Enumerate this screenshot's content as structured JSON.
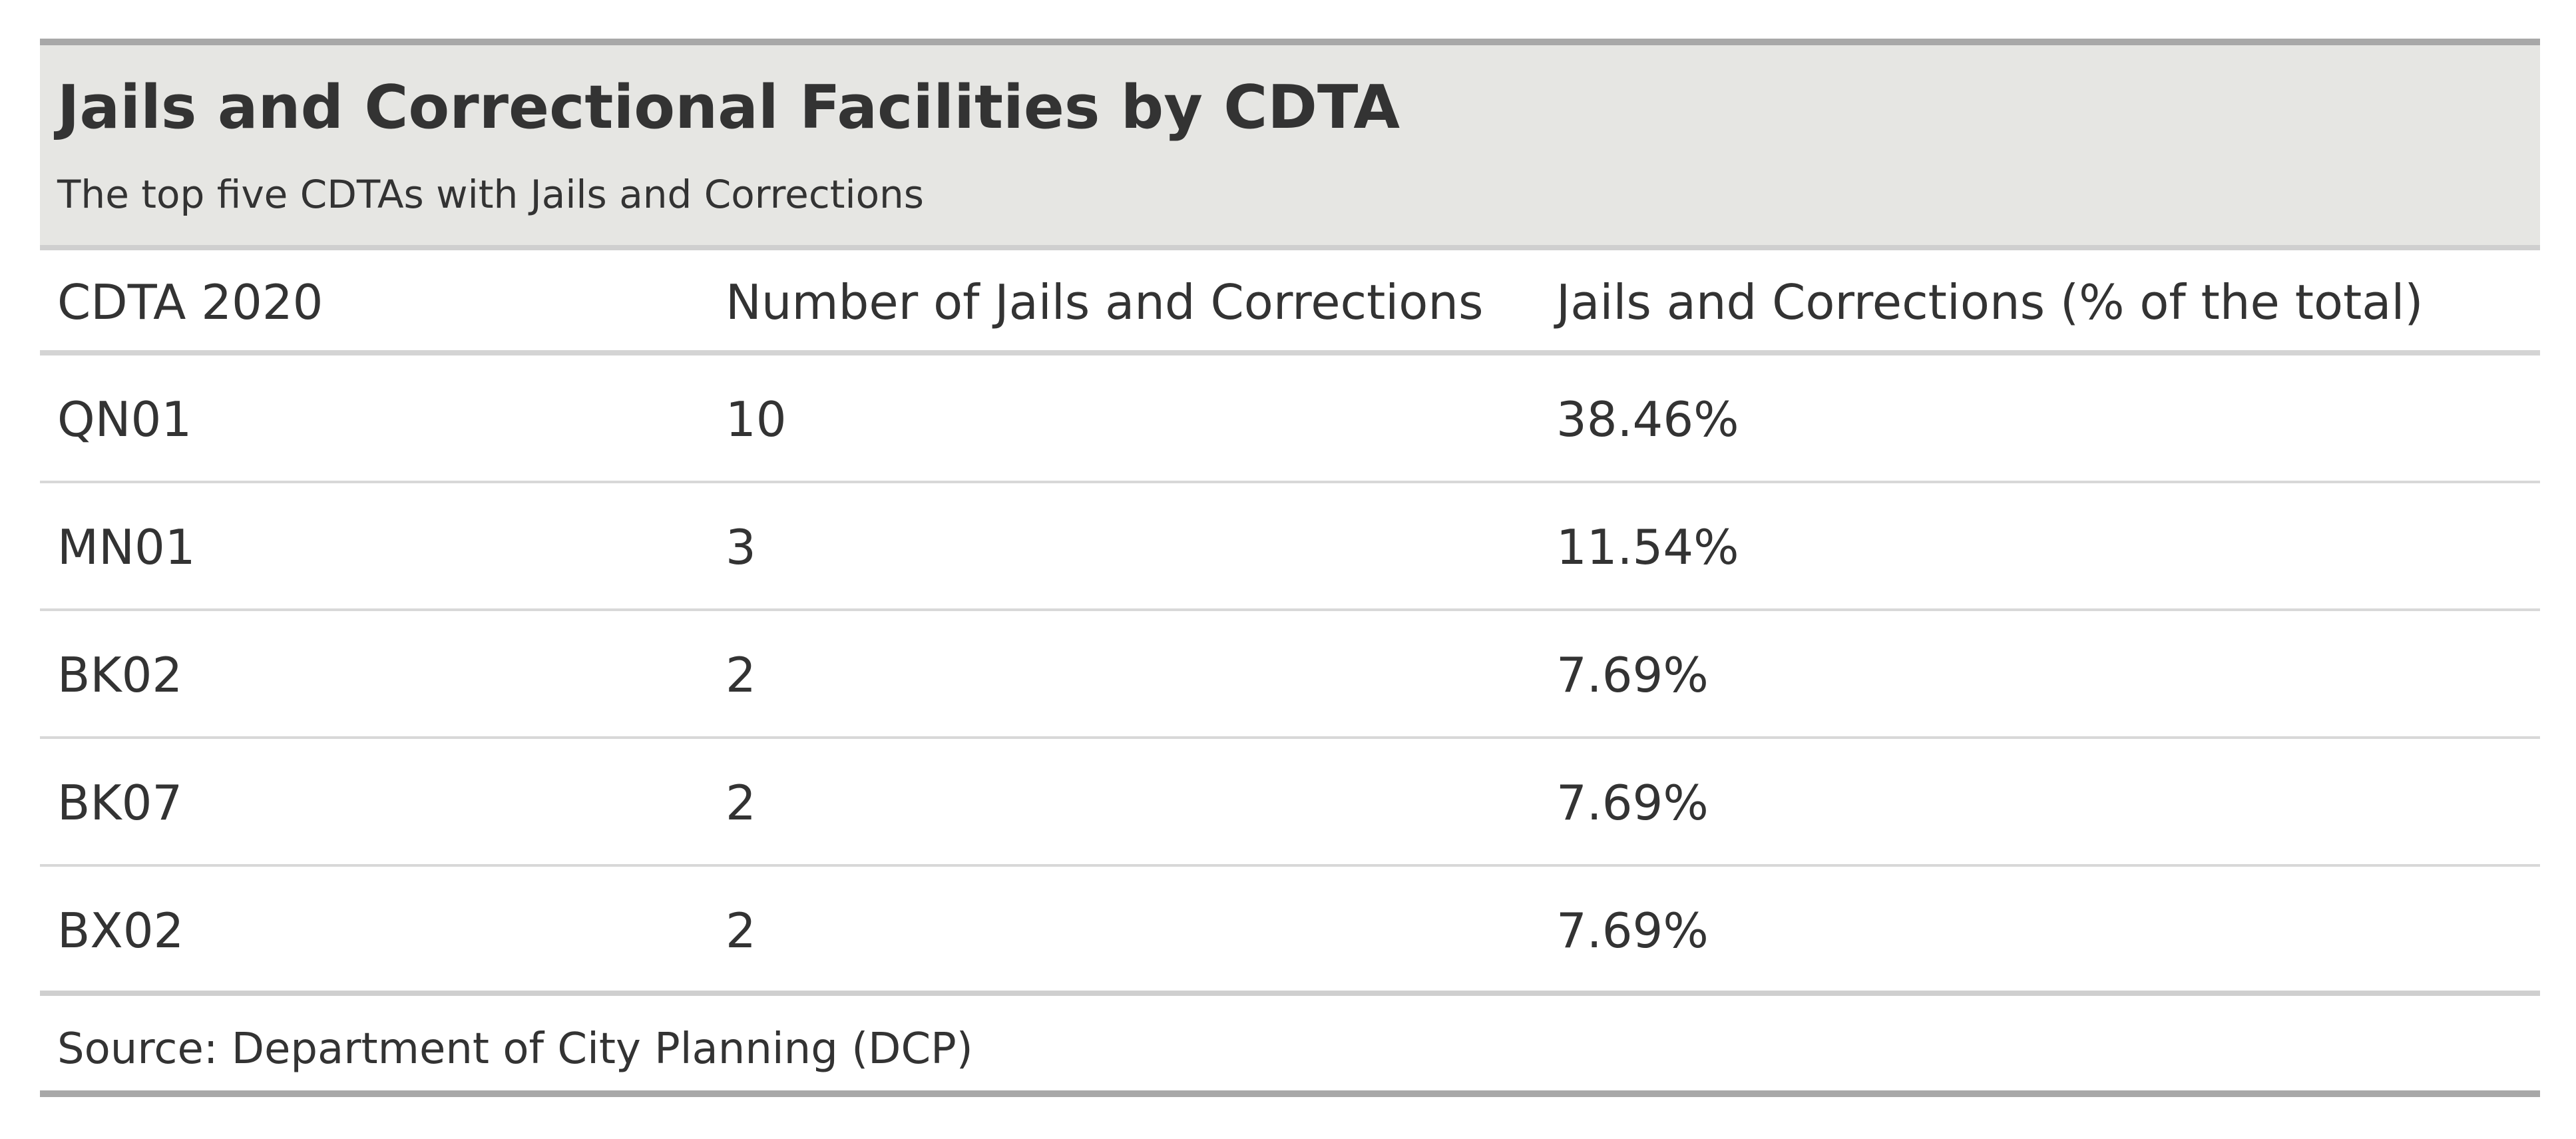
{
  "chart_data": {
    "type": "table",
    "title": "Jails and Correctional Facilities by CDTA",
    "subtitle": "The top five CDTAs with Jails and Corrections",
    "columns": [
      "CDTA 2020",
      "Number of Jails and Corrections",
      "Jails and Corrections (% of the total)"
    ],
    "rows": [
      {
        "cdta": "QN01",
        "count": "10",
        "percent": "38.46%"
      },
      {
        "cdta": "MN01",
        "count": "3",
        "percent": "11.54%"
      },
      {
        "cdta": "BK02",
        "count": "2",
        "percent": "7.69%"
      },
      {
        "cdta": "BK07",
        "count": "2",
        "percent": "7.69%"
      },
      {
        "cdta": "BX02",
        "count": "2",
        "percent": "7.69%"
      }
    ],
    "source": "Source: Department of City Planning (DCP)"
  },
  "colors": {
    "header_band": "#e6e6e3",
    "text": "#333333",
    "rule_dark": "#a8a8a8",
    "rule_light": "#d8d8d8"
  }
}
